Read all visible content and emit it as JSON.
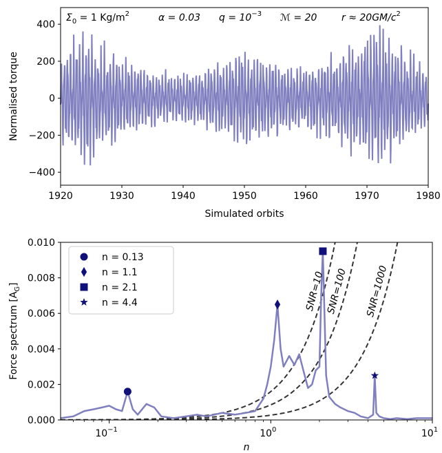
{
  "chart_data": [
    {
      "type": "line",
      "xlabel": "Simulated orbits",
      "ylabel": "Normalised torque",
      "xlim": [
        1920,
        1980
      ],
      "ylim": [
        -470,
        490
      ],
      "xticks": [
        1920,
        1930,
        1940,
        1950,
        1960,
        1970,
        1980
      ],
      "xtick_labels": [
        "1920",
        "1930",
        "1940",
        "1950",
        "1960",
        "1970",
        "1980"
      ],
      "yticks": [
        -400,
        -200,
        0,
        200,
        400
      ],
      "ytick_labels": [
        "−400",
        "−200",
        "0",
        "200",
        "400"
      ],
      "annotations": [
        {
          "prefix": "Σ",
          "sub": "0",
          "mid": " = 1 Kg/m",
          "sup": "2",
          "suffix": ""
        },
        {
          "prefix": "α = 0.03",
          "sub": "",
          "mid": "",
          "sup": "",
          "suffix": ""
        },
        {
          "prefix": "q = 10",
          "sub": "",
          "mid": "",
          "sup": "−3",
          "suffix": ""
        },
        {
          "prefix": "ℳ = 20",
          "sub": "",
          "mid": "",
          "sup": "",
          "suffix": ""
        },
        {
          "prefix": "r ≈ 20GM/c",
          "sub": "",
          "mid": "",
          "sup": "2",
          "suffix": ""
        }
      ],
      "series": [
        {
          "color": "#7f7fc0",
          "approximate_envelope": {
            "x": [
              1920,
              1924,
              1926,
              1930,
              1935,
              1940,
              1945,
              1950,
              1955,
              1960,
              1965,
              1968,
              1972,
              1976,
              1980
            ],
            "amplitude": [
              250,
              360,
              300,
              220,
              150,
              130,
              180,
              250,
              200,
              170,
              230,
              300,
              380,
              260,
              170
            ]
          },
          "oscillation_period_orbits": 0.5
        }
      ]
    },
    {
      "type": "line",
      "xlabel": "n",
      "ylabel_main": "Force spectrum [A",
      "ylabel_sub": "G",
      "ylabel_end": "]",
      "xscale": "log",
      "xlim": [
        0.05,
        10
      ],
      "ylim": [
        0,
        0.01
      ],
      "xticks": [
        0.1,
        1,
        10
      ],
      "xtick_labels": [
        {
          "base": "10",
          "exp": "−1"
        },
        {
          "base": "10",
          "exp": "0"
        },
        {
          "base": "10",
          "exp": "1"
        }
      ],
      "yticks": [
        0,
        0.002,
        0.004,
        0.006,
        0.008,
        0.01
      ],
      "ytick_labels": [
        "0.000",
        "0.002",
        "0.004",
        "0.006",
        "0.008",
        "0.010"
      ],
      "legend_position": "upper-left",
      "legend": [
        {
          "label": "n = 0.13",
          "marker": "circle"
        },
        {
          "label": "n = 1.1",
          "marker": "diamond"
        },
        {
          "label": "n = 2.1",
          "marker": "square"
        },
        {
          "label": "n = 4.4",
          "marker": "star"
        }
      ],
      "markers": [
        {
          "x": 0.13,
          "y": 0.0016,
          "marker": "circle"
        },
        {
          "x": 1.1,
          "y": 0.0065,
          "marker": "diamond"
        },
        {
          "x": 2.1,
          "y": 0.0095,
          "marker": "square"
        },
        {
          "x": 4.4,
          "y": 0.0025,
          "marker": "star"
        }
      ],
      "snr_curves": [
        {
          "label": "SNR=10",
          "y_at_n1": 0.0016
        },
        {
          "label": "SNR=100",
          "y_at_n1": 0.00085
        },
        {
          "label": "SNR=1000",
          "y_at_n1": 0.00027
        }
      ],
      "spectrum": {
        "color": "#7f7fc0",
        "x": [
          0.05,
          0.06,
          0.07,
          0.08,
          0.09,
          0.1,
          0.11,
          0.12,
          0.13,
          0.14,
          0.15,
          0.17,
          0.19,
          0.21,
          0.25,
          0.3,
          0.35,
          0.4,
          0.5,
          0.6,
          0.7,
          0.8,
          0.9,
          0.95,
          1.0,
          1.05,
          1.1,
          1.15,
          1.2,
          1.3,
          1.4,
          1.5,
          1.6,
          1.7,
          1.8,
          1.9,
          2.0,
          2.05,
          2.1,
          2.15,
          2.2,
          2.3,
          2.5,
          2.7,
          3.0,
          3.3,
          3.6,
          4.0,
          4.3,
          4.4,
          4.5,
          4.7,
          5.0,
          5.5,
          6.0,
          7.0,
          8.0,
          9.0,
          10.0
        ],
        "y": [
          0.0001,
          0.0002,
          0.0005,
          0.0006,
          0.0007,
          0.0008,
          0.0006,
          0.0005,
          0.0016,
          0.0006,
          0.0003,
          0.0009,
          0.0007,
          0.0002,
          0.0001,
          0.0002,
          0.0003,
          0.0002,
          0.0004,
          0.0003,
          0.0004,
          0.0005,
          0.0012,
          0.002,
          0.003,
          0.0045,
          0.0065,
          0.004,
          0.003,
          0.0036,
          0.0031,
          0.0037,
          0.0027,
          0.0018,
          0.002,
          0.0028,
          0.003,
          0.007,
          0.0095,
          0.006,
          0.0025,
          0.0013,
          0.0009,
          0.0007,
          0.0005,
          0.0004,
          0.0002,
          0.0001,
          0.0003,
          0.0025,
          0.0004,
          0.0002,
          0.0001,
          5e-05,
          0.0001,
          5e-05,
          0.0001,
          0.0001,
          0.0001
        ]
      }
    }
  ]
}
